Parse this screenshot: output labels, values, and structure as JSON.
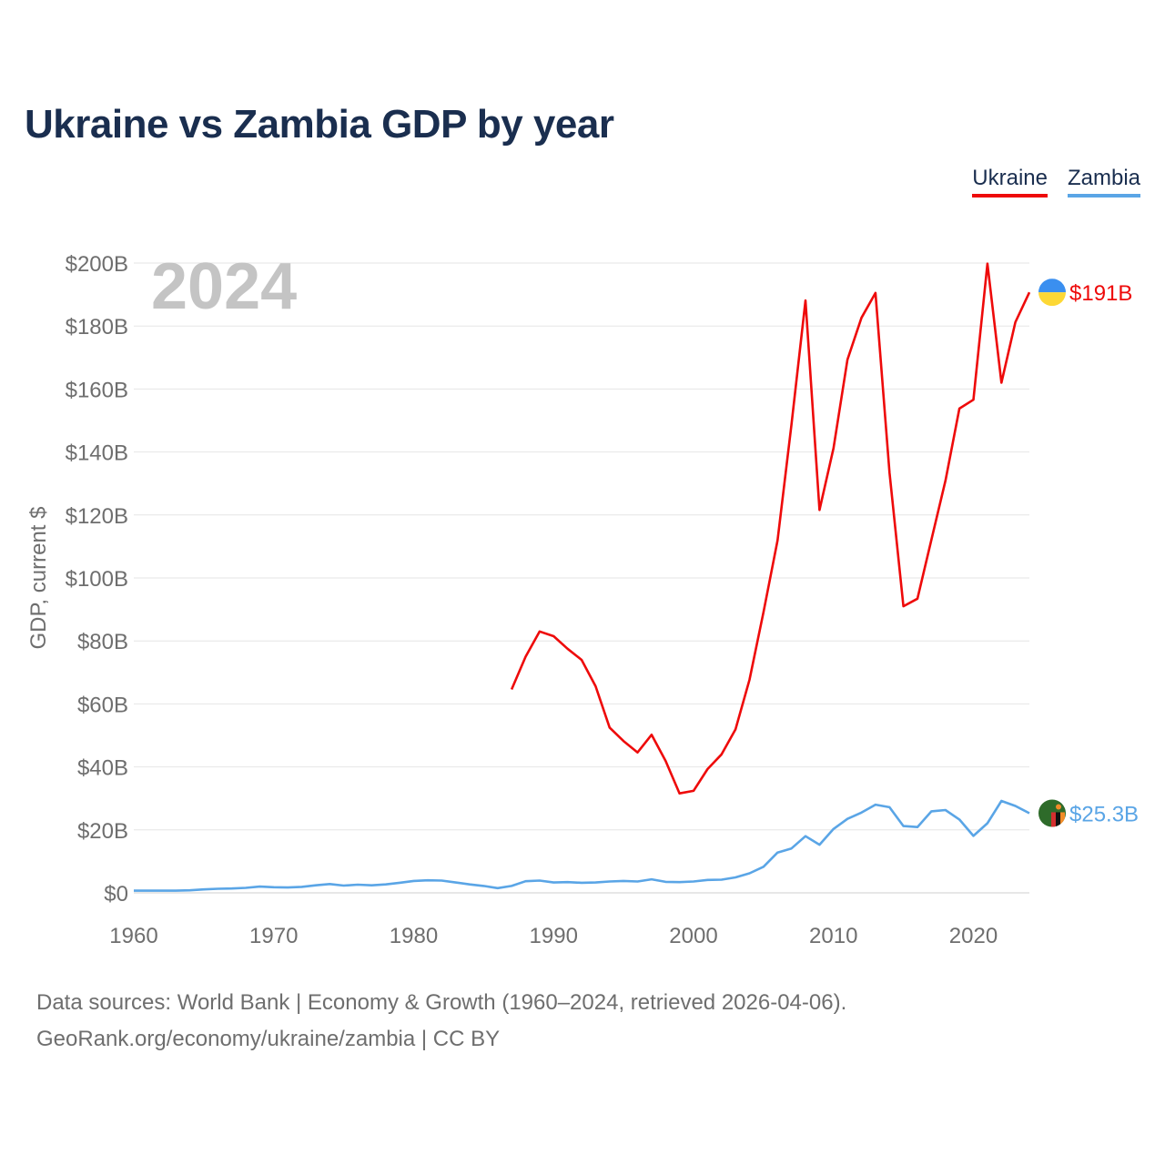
{
  "header": {
    "title": "Ukraine vs Zambia GDP by year"
  },
  "legend": {
    "items": [
      {
        "label": "Ukraine",
        "color": "#ee0a0a"
      },
      {
        "label": "Zambia",
        "color": "#5aa5e6"
      }
    ]
  },
  "chart_data": {
    "type": "line",
    "title": "Ukraine vs Zambia GDP by year",
    "year_watermark": "2024",
    "ylabel": "GDP, current $",
    "xlabel": "",
    "xlim": [
      1960,
      2024
    ],
    "ylim": [
      0,
      200
    ],
    "y_unit": "billions USD",
    "y_ticks": [
      0,
      20,
      40,
      60,
      80,
      100,
      120,
      140,
      160,
      180,
      200
    ],
    "y_tick_labels": [
      "$0",
      "$20B",
      "$40B",
      "$60B",
      "$80B",
      "$100B",
      "$120B",
      "$140B",
      "$160B",
      "$180B",
      "$200B"
    ],
    "x_ticks": [
      1960,
      1970,
      1980,
      1990,
      2000,
      2010,
      2020
    ],
    "x_tick_labels": [
      "1960",
      "1970",
      "1980",
      "1990",
      "2000",
      "2010",
      "2020"
    ],
    "grid": true,
    "legend_position": "top-right",
    "series": [
      {
        "name": "Ukraine",
        "color": "#ee0a0a",
        "end_label": "$191B",
        "flag": "ukraine-flag",
        "x": [
          1987,
          1988,
          1989,
          1990,
          1991,
          1992,
          1993,
          1994,
          1995,
          1996,
          1997,
          1998,
          1999,
          2000,
          2001,
          2002,
          2003,
          2004,
          2005,
          2006,
          2007,
          2008,
          2009,
          2010,
          2011,
          2012,
          2013,
          2014,
          2015,
          2016,
          2017,
          2018,
          2019,
          2020,
          2021,
          2022,
          2023,
          2024
        ],
        "y": [
          64.6,
          75.0,
          83.0,
          81.5,
          77.5,
          74.0,
          65.6,
          52.5,
          48.2,
          44.6,
          50.2,
          41.9,
          31.6,
          32.4,
          39.3,
          44.0,
          51.9,
          67.7,
          89.2,
          111.9,
          148.7,
          188.1,
          121.6,
          141.2,
          169.3,
          182.6,
          190.5,
          133.5,
          91.0,
          93.4,
          112.2,
          130.9,
          153.8,
          156.6,
          199.8,
          162.0,
          181.2,
          190.7
        ]
      },
      {
        "name": "Zambia",
        "color": "#5aa5e6",
        "end_label": "$25.3B",
        "flag": "zambia-flag",
        "x": [
          1960,
          1961,
          1962,
          1963,
          1964,
          1965,
          1966,
          1967,
          1968,
          1969,
          1970,
          1971,
          1972,
          1973,
          1974,
          1975,
          1976,
          1977,
          1978,
          1979,
          1980,
          1981,
          1982,
          1983,
          1984,
          1985,
          1986,
          1987,
          1988,
          1989,
          1990,
          1991,
          1992,
          1993,
          1994,
          1995,
          1996,
          1997,
          1998,
          1999,
          2000,
          2001,
          2002,
          2003,
          2004,
          2005,
          2006,
          2007,
          2008,
          2009,
          2010,
          2011,
          2012,
          2013,
          2014,
          2015,
          2016,
          2017,
          2018,
          2019,
          2020,
          2021,
          2022,
          2023,
          2024
        ],
        "y": [
          0.7,
          0.7,
          0.7,
          0.7,
          0.8,
          1.1,
          1.3,
          1.4,
          1.6,
          2.0,
          1.8,
          1.7,
          1.9,
          2.4,
          2.8,
          2.3,
          2.6,
          2.4,
          2.7,
          3.2,
          3.8,
          4.0,
          3.9,
          3.3,
          2.7,
          2.2,
          1.5,
          2.2,
          3.7,
          3.9,
          3.3,
          3.4,
          3.2,
          3.3,
          3.6,
          3.8,
          3.6,
          4.3,
          3.5,
          3.4,
          3.6,
          4.1,
          4.2,
          4.9,
          6.2,
          8.3,
          12.8,
          14.1,
          18.0,
          15.3,
          20.3,
          23.5,
          25.5,
          28.0,
          27.2,
          21.2,
          20.9,
          25.9,
          26.3,
          23.3,
          18.1,
          22.1,
          29.2,
          27.6,
          25.3
        ]
      }
    ]
  },
  "footer": {
    "source_line": "Data sources: World Bank | Economy & Growth (1960–2024, retrieved 2026-04-06).",
    "url_line": "GeoRank.org/economy/ukraine/zambia | CC BY"
  }
}
